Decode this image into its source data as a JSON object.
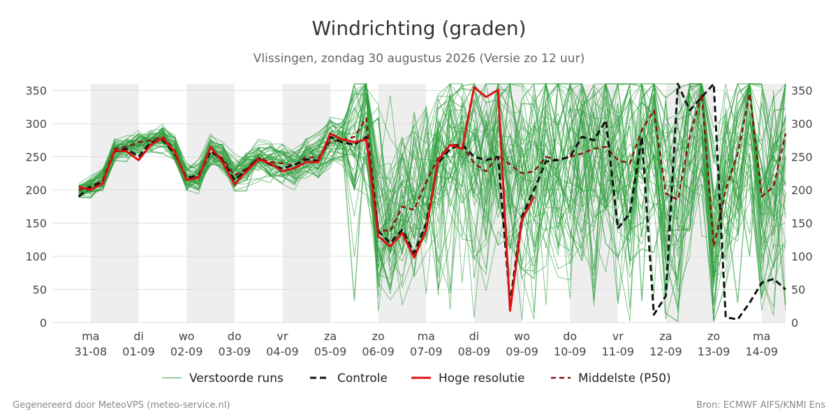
{
  "chart_data": {
    "type": "line",
    "title": "Windrichting (graden)",
    "subtitle": "Vlissingen, zondag 30 augustus 2026 (Versie zo 12 uur)",
    "xlabel": "",
    "ylabel": "",
    "ylim": [
      0,
      360
    ],
    "xlim": [
      -0.8,
      14.5
    ],
    "yticks": [
      0,
      50,
      100,
      150,
      200,
      250,
      300,
      350
    ],
    "x_ticks": [
      {
        "day": "ma",
        "date": "31-08"
      },
      {
        "day": "di",
        "date": "01-09"
      },
      {
        "day": "wo",
        "date": "02-09"
      },
      {
        "day": "do",
        "date": "03-09"
      },
      {
        "day": "vr",
        "date": "04-09"
      },
      {
        "day": "za",
        "date": "05-09"
      },
      {
        "day": "zo",
        "date": "06-09"
      },
      {
        "day": "ma",
        "date": "07-09"
      },
      {
        "day": "di",
        "date": "08-09"
      },
      {
        "day": "wo",
        "date": "09-09"
      },
      {
        "day": "do",
        "date": "10-09"
      },
      {
        "day": "vr",
        "date": "11-09"
      },
      {
        "day": "za",
        "date": "12-09"
      },
      {
        "day": "zo",
        "date": "13-09"
      },
      {
        "day": "ma",
        "date": "14-09"
      }
    ],
    "weekend_bands": [
      [
        0,
        1
      ],
      [
        2,
        3
      ],
      [
        4,
        5
      ],
      [
        6,
        7
      ],
      [
        8,
        9
      ],
      [
        10,
        11
      ],
      [
        12,
        13
      ],
      [
        14,
        14.5
      ]
    ],
    "grid": true,
    "legend_position": "bottom",
    "legend": {
      "ensemble": "Verstoorde runs",
      "control": "Controle",
      "hires": "Hoge resolutie",
      "median": "Middelste (P50)"
    },
    "colors": {
      "ensemble": "#2e9e3e",
      "control": "#111111",
      "hires": "#dd1111",
      "median": "#8b1010",
      "band": "#eeeeee",
      "grid": "#dddddd"
    },
    "ensemble_members": 50,
    "series": [
      {
        "name": "Hoge resolutie",
        "x": [
          -0.25,
          0,
          0.25,
          0.5,
          0.75,
          1,
          1.25,
          1.5,
          1.75,
          2,
          2.25,
          2.5,
          2.75,
          3,
          3.25,
          3.5,
          3.75,
          4,
          4.25,
          4.5,
          4.75,
          5,
          5.25,
          5.5,
          5.75,
          6,
          6.25,
          6.5,
          6.75,
          7,
          7.25,
          7.5,
          7.75,
          8,
          8.25,
          8.5,
          8.75,
          9,
          9.25
        ],
        "values": [
          205,
          200,
          210,
          260,
          258,
          245,
          268,
          278,
          258,
          215,
          218,
          265,
          242,
          208,
          228,
          246,
          240,
          228,
          233,
          242,
          242,
          285,
          276,
          272,
          276,
          130,
          115,
          135,
          98,
          140,
          245,
          268,
          262,
          355,
          340,
          351,
          18,
          155,
          190
        ]
      },
      {
        "name": "Controle",
        "x": [
          -0.25,
          0,
          0.25,
          0.5,
          0.75,
          1,
          1.25,
          1.5,
          1.75,
          2,
          2.25,
          2.5,
          2.75,
          3,
          3.25,
          3.5,
          3.75,
          4,
          4.25,
          4.5,
          4.75,
          5,
          5.25,
          5.5,
          5.75,
          6,
          6.25,
          6.5,
          6.75,
          7,
          7.25,
          7.5,
          7.75,
          8,
          8.25,
          8.5,
          8.75,
          9,
          9.25,
          9.5,
          9.75,
          10,
          10.25,
          10.5,
          10.75,
          11,
          11.25,
          11.5,
          11.75,
          12,
          12.25,
          12.5,
          12.75,
          13,
          13.25,
          13.5,
          13.75,
          14,
          14.25,
          14.5
        ],
        "values": [
          190,
          205,
          212,
          258,
          262,
          250,
          272,
          275,
          255,
          218,
          222,
          258,
          245,
          215,
          230,
          248,
          238,
          232,
          238,
          246,
          244,
          280,
          272,
          268,
          280,
          138,
          120,
          140,
          105,
          150,
          240,
          262,
          268,
          250,
          245,
          250,
          30,
          160,
          200,
          243,
          245,
          250,
          280,
          275,
          305,
          142,
          165,
          280,
          12,
          40,
          360,
          320,
          340,
          360,
          8,
          5,
          30,
          60,
          66,
          50
        ]
      },
      {
        "name": "Middelste (P50)",
        "x": [
          -0.25,
          0,
          0.25,
          0.5,
          0.75,
          1,
          1.25,
          1.5,
          1.75,
          2,
          2.25,
          2.5,
          2.75,
          3,
          3.25,
          3.5,
          3.75,
          4,
          4.25,
          4.5,
          4.75,
          5,
          5.25,
          5.5,
          5.75,
          6,
          6.25,
          6.5,
          6.75,
          7,
          7.25,
          7.5,
          7.75,
          8,
          8.25,
          8.5,
          8.75,
          9,
          9.25,
          9.5,
          9.75,
          10,
          10.25,
          10.5,
          10.75,
          11,
          11.25,
          11.5,
          11.75,
          12,
          12.25,
          12.5,
          12.75,
          13,
          13.25,
          13.5,
          13.75,
          14,
          14.25,
          14.5
        ],
        "values": [
          200,
          205,
          215,
          262,
          265,
          272,
          275,
          280,
          260,
          215,
          220,
          258,
          248,
          222,
          232,
          248,
          242,
          240,
          237,
          250,
          248,
          273,
          275,
          280,
          308,
          140,
          138,
          175,
          170,
          212,
          248,
          268,
          268,
          240,
          228,
          252,
          238,
          225,
          228,
          250,
          245,
          250,
          255,
          262,
          265,
          245,
          240,
          290,
          320,
          195,
          185,
          280,
          345,
          115,
          200,
          255,
          345,
          190,
          205,
          285
        ]
      }
    ]
  },
  "footer": {
    "left": "Gegenereerd door MeteoVPS (meteo-service.nl)",
    "right": "Bron: ECMWF AIFS/KNMI Ens"
  }
}
